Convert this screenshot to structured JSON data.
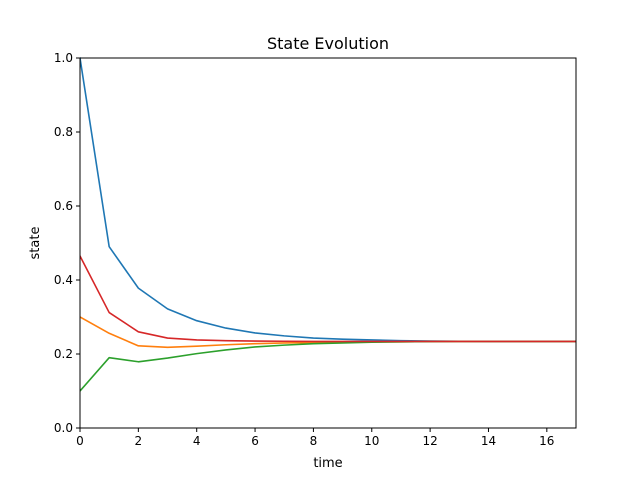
{
  "chart_data": {
    "type": "line",
    "title": "State Evolution",
    "xlabel": "time",
    "ylabel": "state",
    "xlim": [
      0,
      17
    ],
    "ylim": [
      0,
      1.0
    ],
    "xticks": [
      0,
      2,
      4,
      6,
      8,
      10,
      12,
      14,
      16
    ],
    "yticks": [
      0.0,
      0.2,
      0.4,
      0.6,
      0.8,
      1.0
    ],
    "xtick_labels": [
      "0",
      "2",
      "4",
      "6",
      "8",
      "10",
      "12",
      "14",
      "16"
    ],
    "ytick_labels": [
      "0.0",
      "0.2",
      "0.4",
      "0.6",
      "0.8",
      "1.0"
    ],
    "grid": false,
    "x": [
      0,
      1,
      2,
      3,
      4,
      5,
      6,
      7,
      8,
      9,
      10,
      11,
      12,
      13,
      14,
      15,
      16,
      17
    ],
    "series": [
      {
        "color": "#1f77b4",
        "values": [
          1.0,
          0.49,
          0.378,
          0.322,
          0.29,
          0.27,
          0.257,
          0.249,
          0.243,
          0.24,
          0.238,
          0.236,
          0.235,
          0.2345,
          0.234,
          0.234,
          0.234,
          0.234
        ]
      },
      {
        "color": "#ff7f0e",
        "values": [
          0.3,
          0.256,
          0.222,
          0.218,
          0.221,
          0.225,
          0.228,
          0.23,
          0.231,
          0.232,
          0.233,
          0.233,
          0.2335,
          0.234,
          0.234,
          0.234,
          0.234,
          0.234
        ]
      },
      {
        "color": "#2ca02c",
        "values": [
          0.1,
          0.19,
          0.179,
          0.189,
          0.201,
          0.211,
          0.219,
          0.224,
          0.228,
          0.23,
          0.232,
          0.233,
          0.2335,
          0.234,
          0.234,
          0.234,
          0.234,
          0.234
        ]
      },
      {
        "color": "#d62728",
        "values": [
          0.465,
          0.312,
          0.26,
          0.243,
          0.238,
          0.236,
          0.235,
          0.2345,
          0.234,
          0.234,
          0.234,
          0.234,
          0.234,
          0.234,
          0.234,
          0.234,
          0.234,
          0.234
        ]
      }
    ]
  }
}
